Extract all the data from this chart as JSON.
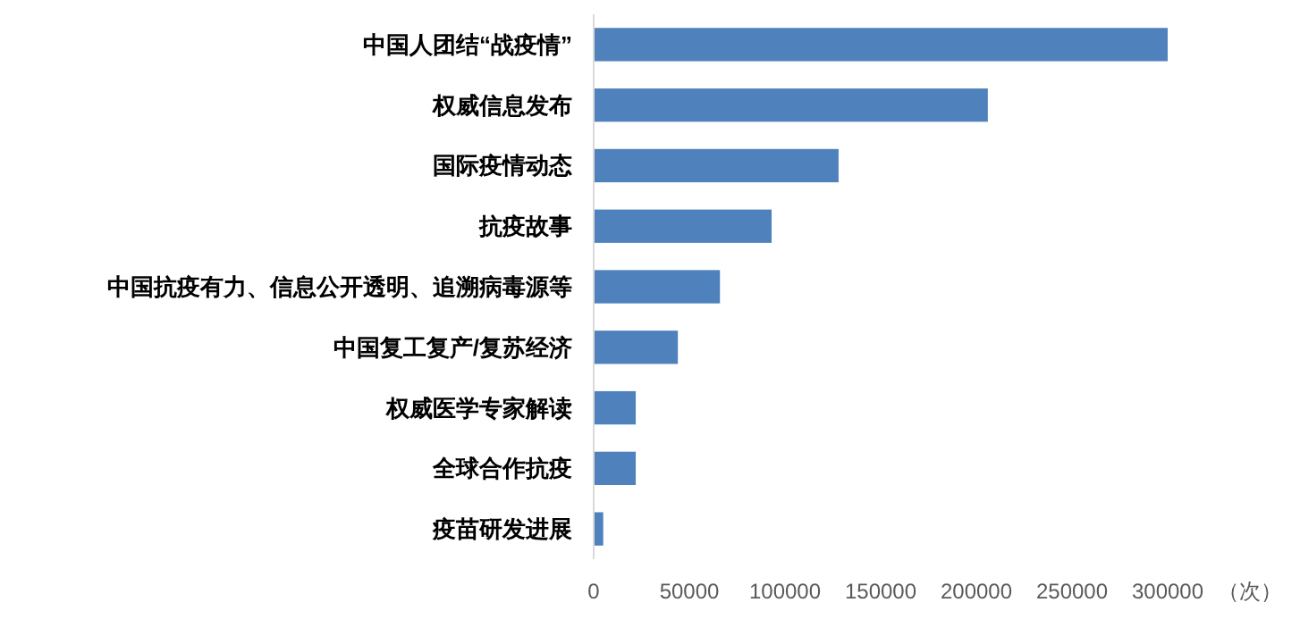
{
  "chart_data": {
    "type": "bar",
    "orientation": "horizontal",
    "xlabel": "（次）",
    "categories": [
      "中国人团结“战疫情”",
      "权威信息发布",
      "国际疫情动态",
      "抗疫故事",
      "中国抗疫有力、信息公开透明、追溯病毒源等",
      "中国复工复产/复苏经济",
      "权威医学专家解读",
      "全球合作抗疫",
      "疫苗研发进展"
    ],
    "values": [
      300000,
      206000,
      128000,
      93000,
      66000,
      44000,
      22000,
      22000,
      5000
    ],
    "color": "#4f81bd",
    "xlim": [
      0,
      300000
    ],
    "xticks": [
      0,
      50000,
      100000,
      150000,
      200000,
      250000,
      300000
    ],
    "grid": false
  }
}
